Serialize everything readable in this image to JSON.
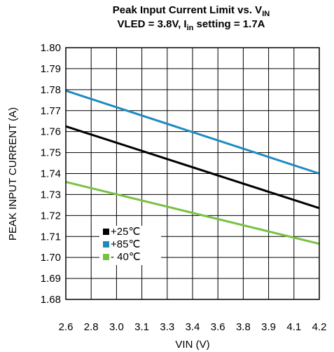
{
  "chart_data": {
    "type": "line",
    "title_line1": "Peak Input Current Limit vs. V",
    "title_line1_sub": "IN",
    "title_line2_a": "VLED = 3.8V, I",
    "title_line2_sub": "in",
    "title_line2_b": " setting = 1.7A",
    "xlabel": "VIN (V)",
    "ylabel": "PEAK INPUT CURRENT (A)",
    "xlim": [
      2.6,
      4.2
    ],
    "ylim": [
      1.68,
      1.8
    ],
    "x_ticks": [
      "2.6",
      "2.8",
      "3.0",
      "3.1",
      "3.3",
      "3.4",
      "3.6",
      "3.8",
      "3.9",
      "4.1",
      "4.2"
    ],
    "y_ticks": [
      "1.80",
      "1.79",
      "1.78",
      "1.77",
      "1.76",
      "1.75",
      "1.74",
      "1.73",
      "1.72",
      "1.71",
      "1.70",
      "1.69",
      "1.68"
    ],
    "grid": true,
    "legend_position": "bottom-left",
    "series": [
      {
        "name": "+25℃",
        "color": "#000000",
        "x": [
          2.6,
          4.2
        ],
        "y": [
          1.7625,
          1.7235
        ]
      },
      {
        "name": "+85℃",
        "color": "#1f8ac0",
        "x": [
          2.6,
          4.2
        ],
        "y": [
          1.7795,
          1.74
        ]
      },
      {
        "name": "- 40℃",
        "color": "#79c142",
        "x": [
          2.6,
          4.2
        ],
        "y": [
          1.736,
          1.7065
        ]
      }
    ]
  }
}
